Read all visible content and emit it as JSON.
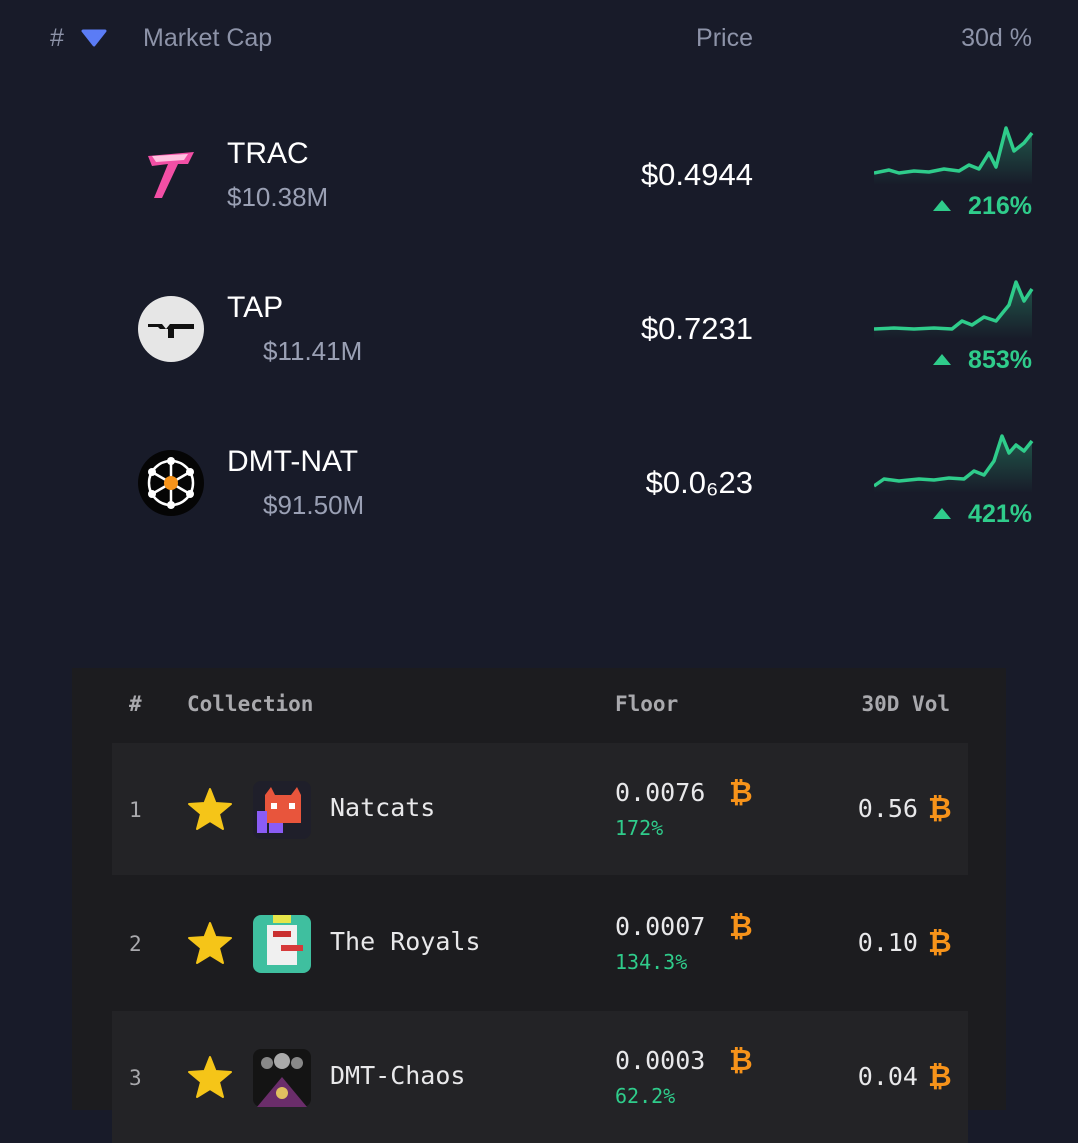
{
  "tokens": {
    "header": {
      "rank": "#",
      "market_cap": "Market Cap",
      "price": "Price",
      "change": "30d %"
    },
    "rows": [
      {
        "name": "TRAC",
        "market_cap": "$10.38M",
        "price": "$0.4944",
        "change": "216%"
      },
      {
        "name": "TAP",
        "market_cap": "$11.41M",
        "price": "$0.7231",
        "change": "853%"
      },
      {
        "name": "DMT-NAT",
        "market_cap": "$91.50M",
        "price": "$0.0₆23",
        "change": "421%"
      }
    ]
  },
  "collections": {
    "header": {
      "rank": "#",
      "collection": "Collection",
      "floor": "Floor",
      "volume": "30D Vol"
    },
    "currency_symbol": "₿",
    "rows": [
      {
        "rank": "1",
        "name": "Natcats",
        "floor": "0.0076",
        "floor_change": "172%",
        "volume": "0.56"
      },
      {
        "rank": "2",
        "name": "The Royals",
        "floor": "0.0007",
        "floor_change": "134.3%",
        "volume": "0.10"
      },
      {
        "rank": "3",
        "name": "DMT-Chaos",
        "floor": "0.0003",
        "floor_change": "62.2%",
        "volume": "0.04"
      }
    ]
  }
}
